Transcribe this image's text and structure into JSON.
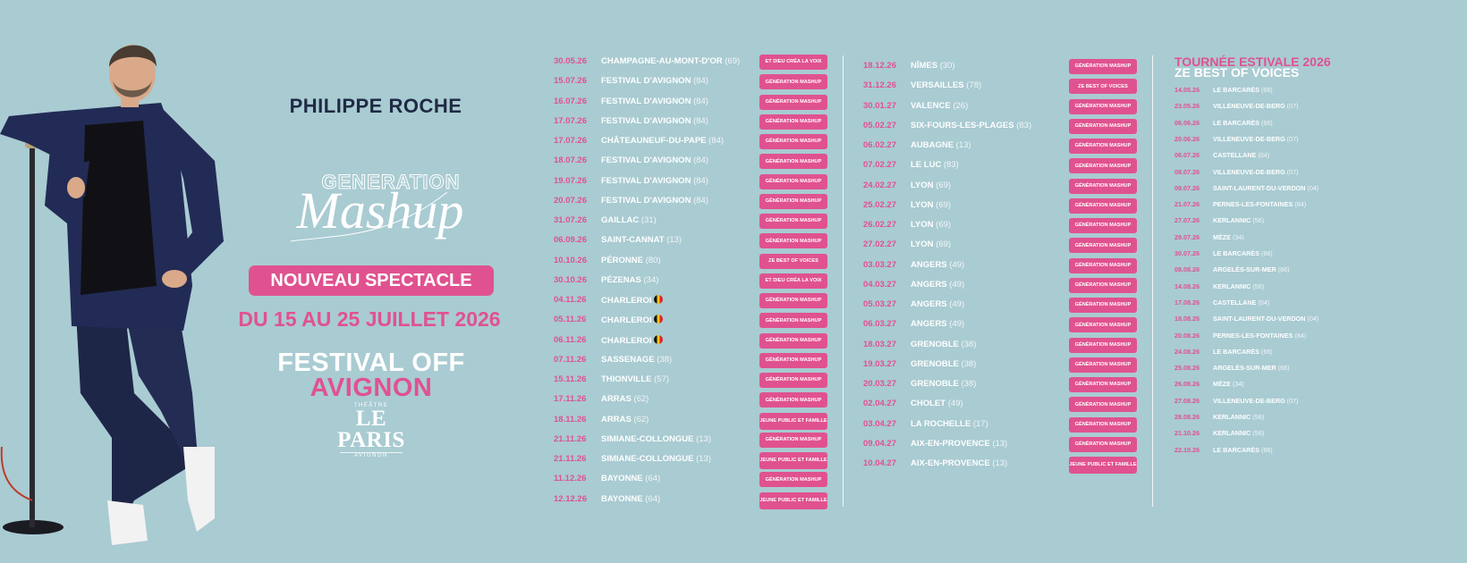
{
  "promo": {
    "artist_name": "PHILIPPE ROCHE",
    "show_logo_top": "GENERATION",
    "show_logo_script": "Mashup",
    "badge": "NOUVEAU SPECTACLE",
    "dates": "DU 15 AU 25 JUILLET 2026",
    "festival_line1": "FESTIVAL OFF",
    "festival_line2": "AVIGNON",
    "theatre_small_top": "THÉÂTRE",
    "theatre_name": "LE PARIS",
    "theatre_small_bottom": "AVIGNON"
  },
  "colors": {
    "background": "#a9cbd2",
    "accent_pink": "#e0528f",
    "navy": "#1f2a44",
    "white": "#ffffff"
  },
  "tour": {
    "column1": [
      {
        "date": "30.05.26",
        "city": "CHAMPAGNE-AU-MONT-D'OR",
        "dep": "(69)",
        "show": "ET DIEU CRÉA LA VOIX"
      },
      {
        "date": "15.07.26",
        "city": "FESTIVAL D'AVIGNON",
        "dep": "(84)",
        "show": "GÉNÉRATION MASHUP"
      },
      {
        "date": "16.07.26",
        "city": "FESTIVAL D'AVIGNON",
        "dep": "(84)",
        "show": "GÉNÉRATION MASHUP"
      },
      {
        "date": "17.07.26",
        "city": "FESTIVAL D'AVIGNON",
        "dep": "(84)",
        "show": "GÉNÉRATION MASHUP"
      },
      {
        "date": "17.07.26",
        "city": "CHÂTEAUNEUF-DU-PAPE",
        "dep": "(84)",
        "show": "GÉNÉRATION MASHUP"
      },
      {
        "date": "18.07.26",
        "city": "FESTIVAL D'AVIGNON",
        "dep": "(84)",
        "show": "GÉNÉRATION MASHUP"
      },
      {
        "date": "19.07.26",
        "city": "FESTIVAL D'AVIGNON",
        "dep": "(84)",
        "show": "GÉNÉRATION MASHUP"
      },
      {
        "date": "20.07.26",
        "city": "FESTIVAL D'AVIGNON",
        "dep": "(84)",
        "show": "GÉNÉRATION MASHUP"
      },
      {
        "date": "31.07.26",
        "city": "GAILLAC",
        "dep": "(31)",
        "show": "GÉNÉRATION MASHUP"
      },
      {
        "date": "06.09.26",
        "city": "SAINT-CANNAT",
        "dep": "(13)",
        "show": "GÉNÉRATION MASHUP"
      },
      {
        "date": "10.10.26",
        "city": "PÉRONNE",
        "dep": "(80)",
        "show": "ZE BEST OF VOICES"
      },
      {
        "date": "30.10.26",
        "city": "PÉZENAS",
        "dep": "(34)",
        "show": "ET DIEU CRÉA LA VOIX"
      },
      {
        "date": "04.11.26",
        "city": "CHARLEROI",
        "dep": "",
        "flag": true,
        "show": "GÉNÉRATION MASHUP"
      },
      {
        "date": "05.11.26",
        "city": "CHARLEROI",
        "dep": "",
        "flag": true,
        "show": "GÉNÉRATION MASHUP"
      },
      {
        "date": "06.11.26",
        "city": "CHARLEROI",
        "dep": "",
        "flag": true,
        "show": "GÉNÉRATION MASHUP"
      },
      {
        "date": "07.11.26",
        "city": "SASSENAGE",
        "dep": "(38)",
        "show": "GÉNÉRATION MASHUP"
      },
      {
        "date": "15.11.26",
        "city": "THIONVILLE",
        "dep": "(57)",
        "show": "GÉNÉRATION MASHUP"
      },
      {
        "date": "17.11.26",
        "city": "ARRAS",
        "dep": "(62)",
        "show": "GÉNÉRATION MASHUP"
      },
      {
        "date": "18.11.26",
        "city": "ARRAS",
        "dep": "(62)",
        "show": "JEUNE PUBLIC ET FAMILLE"
      },
      {
        "date": "21.11.26",
        "city": "SIMIANE-COLLONGUE",
        "dep": "(13)",
        "show": "GÉNÉRATION MASHUP"
      },
      {
        "date": "21.11.26",
        "city": "SIMIANE-COLLONGUE",
        "dep": "(13)",
        "show": "JEUNE PUBLIC ET FAMILLE"
      },
      {
        "date": "11.12.26",
        "city": "BAYONNE",
        "dep": "(64)",
        "show": "GÉNÉRATION MASHUP"
      },
      {
        "date": "12.12.26",
        "city": "BAYONNE",
        "dep": "(64)",
        "show": "JEUNE PUBLIC ET FAMILLE"
      }
    ],
    "column2": [
      {
        "date": "18.12.26",
        "city": "NÎMES",
        "dep": "(30)",
        "show": "GÉNÉRATION MASHUP"
      },
      {
        "date": "31.12.26",
        "city": "VERSAILLES",
        "dep": "(78)",
        "show": "ZE BEST OF VOICES"
      },
      {
        "date": "30.01.27",
        "city": "VALENCE",
        "dep": "(26)",
        "show": "GÉNÉRATION MASHUP"
      },
      {
        "date": "05.02.27",
        "city": "SIX-FOURS-LES-PLAGES",
        "dep": "(83)",
        "show": "GÉNÉRATION MASHUP"
      },
      {
        "date": "06.02.27",
        "city": "AUBAGNE",
        "dep": "(13)",
        "show": "GÉNÉRATION MASHUP"
      },
      {
        "date": "07.02.27",
        "city": "LE LUC",
        "dep": "(83)",
        "show": "GÉNÉRATION MASHUP"
      },
      {
        "date": "24.02.27",
        "city": "LYON",
        "dep": "(69)",
        "show": "GÉNÉRATION MASHUP"
      },
      {
        "date": "25.02.27",
        "city": "LYON",
        "dep": "(69)",
        "show": "GÉNÉRATION MASHUP"
      },
      {
        "date": "26.02.27",
        "city": "LYON",
        "dep": "(69)",
        "show": "GÉNÉRATION MASHUP"
      },
      {
        "date": "27.02.27",
        "city": "LYON",
        "dep": "(69)",
        "show": "GÉNÉRATION MASHUP"
      },
      {
        "date": "03.03.27",
        "city": "ANGERS",
        "dep": "(49)",
        "show": "GÉNÉRATION MASHUP"
      },
      {
        "date": "04.03.27",
        "city": "ANGERS",
        "dep": "(49)",
        "show": "GÉNÉRATION MASHUP"
      },
      {
        "date": "05.03.27",
        "city": "ANGERS",
        "dep": "(49)",
        "show": "GÉNÉRATION MASHUP"
      },
      {
        "date": "06.03.27",
        "city": "ANGERS",
        "dep": "(49)",
        "show": "GÉNÉRATION MASHUP"
      },
      {
        "date": "18.03.27",
        "city": "GRENOBLE",
        "dep": "(38)",
        "show": "GÉNÉRATION MASHUP"
      },
      {
        "date": "19.03.27",
        "city": "GRENOBLE",
        "dep": "(38)",
        "show": "GÉNÉRATION MASHUP"
      },
      {
        "date": "20.03.27",
        "city": "GRENOBLE",
        "dep": "(38)",
        "show": "GÉNÉRATION MASHUP"
      },
      {
        "date": "02.04.27",
        "city": "CHOLET",
        "dep": "(49)",
        "show": "GÉNÉRATION MASHUP"
      },
      {
        "date": "03.04.27",
        "city": "LA ROCHELLE",
        "dep": "(17)",
        "show": "GÉNÉRATION MASHUP"
      },
      {
        "date": "09.04.27",
        "city": "AIX-EN-PROVENCE",
        "dep": "(13)",
        "show": "GÉNÉRATION MASHUP"
      },
      {
        "date": "10.04.27",
        "city": "AIX-EN-PROVENCE",
        "dep": "(13)",
        "show": "JEUNE PUBLIC ET FAMILLE"
      }
    ]
  },
  "summer_tour": {
    "title": "TOURNÉE ESTIVALE 2026",
    "subtitle": "ZE BEST OF VOICES",
    "dates": [
      {
        "date": "14.05.26",
        "city": "LE BARCARÈS",
        "dep": "(66)"
      },
      {
        "date": "23.05.26",
        "city": "VILLENEUVE-DE-BERG",
        "dep": "(07)"
      },
      {
        "date": "06.06.26",
        "city": "LE BARCARÈS",
        "dep": "(66)"
      },
      {
        "date": "20.06.26",
        "city": "VILLENEUVE-DE-BERG",
        "dep": "(07)"
      },
      {
        "date": "06.07.26",
        "city": "CASTELLANE",
        "dep": "(04)"
      },
      {
        "date": "08.07.26",
        "city": "VILLENEUVE-DE-BERG",
        "dep": "(07)"
      },
      {
        "date": "09.07.26",
        "city": "SAINT-LAURENT-DU-VERDON",
        "dep": "(04)"
      },
      {
        "date": "21.07.26",
        "city": "PERNES-LES-FONTAINES",
        "dep": "(84)"
      },
      {
        "date": "27.07.26",
        "city": "KERLANNIC",
        "dep": "(56)"
      },
      {
        "date": "29.07.26",
        "city": "MÈZE",
        "dep": "(34)"
      },
      {
        "date": "30.07.26",
        "city": "LE BARCARÈS",
        "dep": "(66)"
      },
      {
        "date": "08.08.26",
        "city": "ARGELÈS-SUR-MER",
        "dep": "(66)"
      },
      {
        "date": "14.08.26",
        "city": "KERLANNIC",
        "dep": "(56)"
      },
      {
        "date": "17.08.26",
        "city": "CASTELLANE",
        "dep": "(04)"
      },
      {
        "date": "18.08.26",
        "city": "SAINT-LAURENT-DU-VERDON",
        "dep": "(04)"
      },
      {
        "date": "20.08.26",
        "city": "PERNES-LES-FONTAINES",
        "dep": "(84)"
      },
      {
        "date": "24.08.26",
        "city": "LE BARCARÈS",
        "dep": "(66)"
      },
      {
        "date": "25.08.26",
        "city": "ARGELÈS-SUR-MER",
        "dep": "(66)"
      },
      {
        "date": "26.08.26",
        "city": "MÈZE",
        "dep": "(34)"
      },
      {
        "date": "27.08.26",
        "city": "VILLENEUVE-DE-BERG",
        "dep": "(07)"
      },
      {
        "date": "28.08.26",
        "city": "KERLANNIC",
        "dep": "(56)"
      },
      {
        "date": "21.10.26",
        "city": "KERLANNIC",
        "dep": "(56)"
      },
      {
        "date": "22.10.26",
        "city": "LE BARCARÈS",
        "dep": "(66)"
      }
    ]
  }
}
